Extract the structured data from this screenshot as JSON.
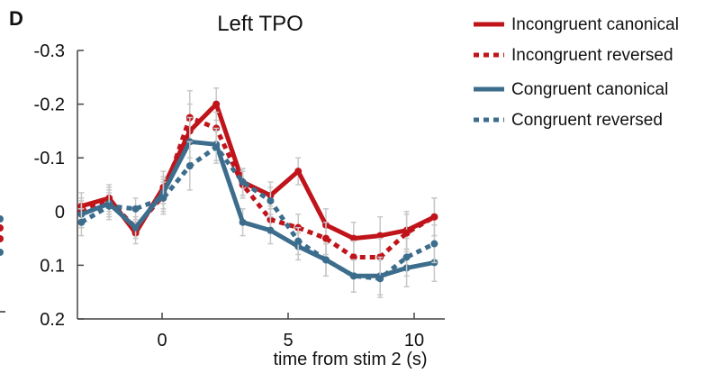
{
  "panel_label": "D",
  "chart_data": {
    "type": "line",
    "title": "Left TPO",
    "xlabel": "time from stim 2 (s)",
    "ylabel": "",
    "xlim": [
      -3.5,
      11
    ],
    "ylim": [
      -0.3,
      0.2
    ],
    "y_axis_inverted": true,
    "x_ticks": [
      0,
      5,
      10
    ],
    "x_tick_labels": [
      "0",
      "5",
      "10"
    ],
    "y_ticks": [
      -0.3,
      -0.2,
      -0.1,
      0,
      0.1,
      0.2
    ],
    "y_tick_labels": [
      "-0.3",
      "-0.2",
      "-0.1",
      "0",
      "0.1",
      "0.2"
    ],
    "grid": false,
    "legend_position": "right",
    "x": [
      -3.2,
      -2.1,
      -1.05,
      0.05,
      1.1,
      2.15,
      3.2,
      4.3,
      5.4,
      6.5,
      7.6,
      8.65,
      9.7,
      10.8
    ],
    "series": [
      {
        "name": "Incongruent canonical",
        "color": "#c0141b",
        "style": "solid",
        "values": [
          -0.01,
          -0.025,
          0.04,
          -0.045,
          -0.15,
          -0.2,
          -0.055,
          -0.03,
          -0.075,
          0.025,
          0.05,
          0.045,
          0.035,
          0.01
        ],
        "errors": [
          0.025,
          0.025,
          0.02,
          0.03,
          0.05,
          0.03,
          0.025,
          0.025,
          0.025,
          0.03,
          0.03,
          0.035,
          0.035,
          0.035
        ]
      },
      {
        "name": "Incongruent reversed",
        "color": "#c0141b",
        "style": "dotted",
        "values": [
          0.0,
          -0.02,
          0.03,
          -0.03,
          -0.175,
          -0.155,
          -0.05,
          0.015,
          0.03,
          0.05,
          0.085,
          0.085,
          0.04,
          0.01
        ],
        "errors": [
          0.025,
          0.025,
          0.02,
          0.03,
          0.05,
          0.03,
          0.025,
          0.025,
          0.025,
          0.03,
          0.03,
          0.035,
          0.035,
          0.035
        ]
      },
      {
        "name": "Congruent canonical",
        "color": "#3d6d8c",
        "style": "solid",
        "values": [
          0.005,
          -0.015,
          0.03,
          -0.035,
          -0.13,
          -0.125,
          0.02,
          0.035,
          0.065,
          0.09,
          0.12,
          0.12,
          0.105,
          0.095
        ],
        "errors": [
          0.025,
          0.025,
          0.02,
          0.03,
          0.045,
          0.03,
          0.025,
          0.025,
          0.025,
          0.03,
          0.03,
          0.035,
          0.035,
          0.035
        ]
      },
      {
        "name": "Congruent reversed",
        "color": "#3d6d8c",
        "style": "dotted",
        "values": [
          0.02,
          -0.01,
          -0.005,
          -0.025,
          -0.085,
          -0.12,
          -0.055,
          -0.02,
          0.055,
          0.09,
          0.12,
          0.125,
          0.085,
          0.06
        ],
        "errors": [
          0.025,
          0.025,
          0.02,
          0.03,
          0.045,
          0.03,
          0.025,
          0.025,
          0.025,
          0.03,
          0.03,
          0.035,
          0.035,
          0.035
        ]
      }
    ]
  }
}
